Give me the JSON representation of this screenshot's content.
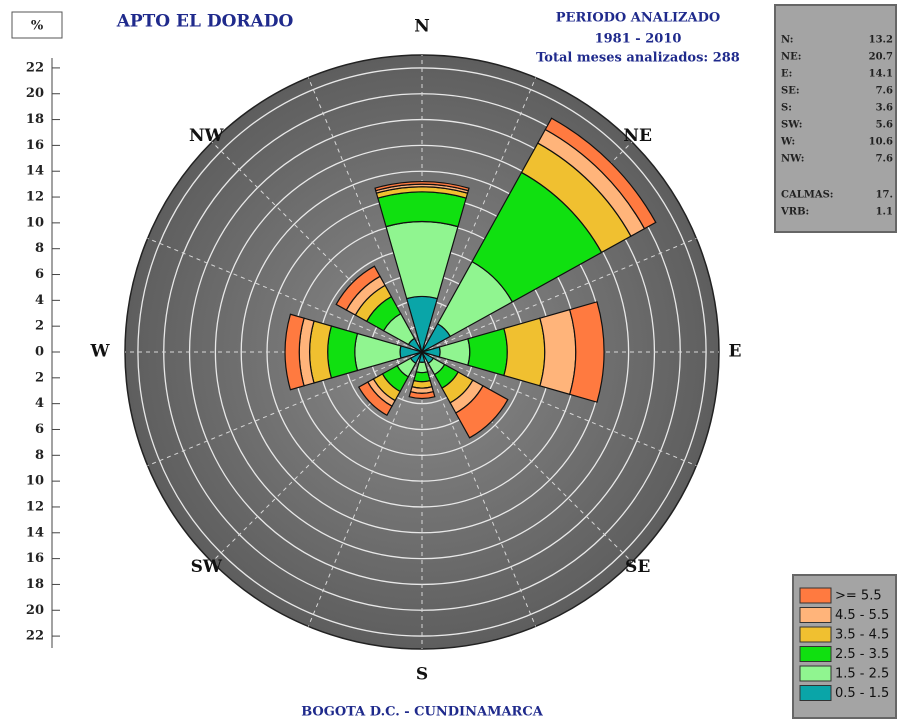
{
  "chart_data": {
    "type": "windrose",
    "title": "APTO EL DORADO",
    "period_title": "PERIODO ANALIZADO",
    "period": "1981 - 2010",
    "months": "Total meses analizados: 288",
    "footer": "BOGOTA D.C. - CUNDINAMARCA",
    "unit": "%",
    "categories": [
      "N",
      "NE",
      "E",
      "SE",
      "S",
      "SW",
      "W",
      "NW"
    ],
    "series": [
      {
        "name": "0.5 - 1.5",
        "color": "#0aa5a8",
        "values": [
          4.3,
          2.5,
          1.4,
          1.0,
          0.8,
          1.0,
          1.7,
          1.2
        ]
      },
      {
        "name": "1.5 - 2.5",
        "color": "#90f590",
        "values": [
          5.8,
          5.5,
          2.3,
          1.0,
          0.8,
          1.2,
          3.5,
          2.2
        ]
      },
      {
        "name": "2.5 - 3.5",
        "color": "#10e010",
        "values": [
          2.3,
          7.9,
          2.9,
          1.2,
          0.7,
          1.3,
          2.1,
          1.5
        ]
      },
      {
        "name": "3.5 - 4.5",
        "color": "#f0c030",
        "values": [
          0.4,
          2.6,
          2.9,
          1.3,
          0.5,
          0.8,
          1.4,
          1.0
        ]
      },
      {
        "name": "4.5 - 5.5",
        "color": "#ffb47a",
        "values": [
          0.2,
          1.2,
          2.4,
          0.9,
          0.4,
          0.5,
          0.8,
          0.8
        ]
      },
      {
        "name": ">= 5.5",
        "color": "#ff7a40",
        "values": [
          0.2,
          1.0,
          2.2,
          2.2,
          0.4,
          0.8,
          1.1,
          0.9
        ]
      }
    ],
    "rlim": [
      0,
      23
    ],
    "rticks": [
      0,
      2,
      4,
      6,
      8,
      10,
      12,
      14,
      16,
      18,
      20,
      22
    ],
    "summary": [
      {
        "label": "N:",
        "value": "13.2"
      },
      {
        "label": "NE:",
        "value": "20.7"
      },
      {
        "label": "E:",
        "value": "14.1"
      },
      {
        "label": "SE:",
        "value": "7.6"
      },
      {
        "label": "S:",
        "value": "3.6"
      },
      {
        "label": "SW:",
        "value": "5.6"
      },
      {
        "label": "W:",
        "value": "10.6"
      },
      {
        "label": "NW:",
        "value": "7.6"
      },
      {
        "label": "CALMAS:",
        "value": "17."
      },
      {
        "label": "VRB:",
        "value": "1.1"
      }
    ]
  }
}
